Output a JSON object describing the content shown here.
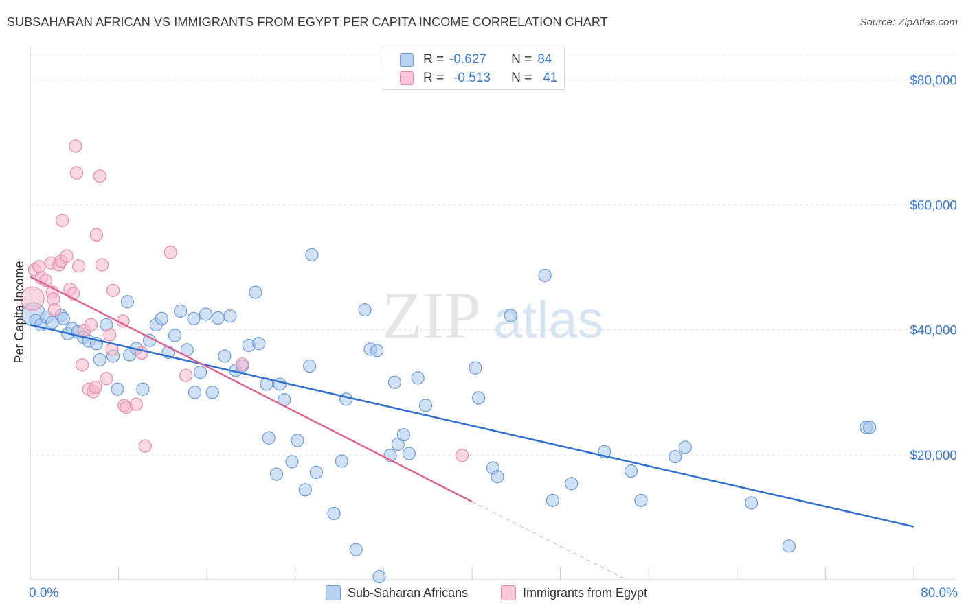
{
  "title": "SUBSAHARAN AFRICAN VS IMMIGRANTS FROM EGYPT PER CAPITA INCOME CORRELATION CHART",
  "source": "Source: ZipAtlas.com",
  "watermark": {
    "part1": "ZIP",
    "part2": "atlas"
  },
  "legend": {
    "rows": [
      {
        "r_label": "R =",
        "r_value": "-0.627",
        "n_label": "N =",
        "n_value": "84"
      },
      {
        "r_label": "R =",
        "r_value": "-0.513",
        "n_label": "N =",
        "n_value": "41"
      }
    ]
  },
  "bottom_legend": {
    "series1": "Sub-Saharan Africans",
    "series2": "Immigrants from Egypt"
  },
  "colors": {
    "blue_fill": "#a9c8ee",
    "blue_stroke": "#6a9ad8",
    "blue_line": "#2f6fd0",
    "pink_fill": "#f6b8cb",
    "pink_stroke": "#e88aa8",
    "pink_line": "#e0608e",
    "axis_text": "#3a78d8",
    "grid": "#e4e4e4"
  },
  "chart_data": {
    "type": "scatter",
    "xlabel": "",
    "ylabel": "Per Capita Income",
    "x_unit": "%",
    "xlim": [
      0,
      80
    ],
    "ylim": [
      0,
      84000
    ],
    "x_tick_labels": [
      "0.0%",
      "80.0%"
    ],
    "y_ticks": [
      20000,
      40000,
      60000,
      80000
    ],
    "y_tick_labels": [
      "$20,000",
      "$40,000",
      "$60,000",
      "$80,000"
    ],
    "grid": true,
    "series": [
      {
        "name": "Sub-Saharan Africans",
        "color": "#6a9ad8",
        "r": -0.627,
        "n": 84,
        "trend": {
          "x": [
            0,
            80
          ],
          "y": [
            40800,
            8500
          ]
        },
        "points": [
          [
            0.3,
            42500
          ],
          [
            0.5,
            41500
          ],
          [
            1.0,
            40800
          ],
          [
            1.5,
            42000
          ],
          [
            2.0,
            41200
          ],
          [
            2.8,
            42300
          ],
          [
            3.0,
            41800
          ],
          [
            3.4,
            39400
          ],
          [
            3.8,
            40200
          ],
          [
            4.3,
            39700
          ],
          [
            4.8,
            38800
          ],
          [
            5.3,
            38200
          ],
          [
            6.0,
            37800
          ],
          [
            6.3,
            35200
          ],
          [
            6.9,
            40800
          ],
          [
            7.5,
            35800
          ],
          [
            7.9,
            30500
          ],
          [
            8.8,
            44500
          ],
          [
            9.0,
            36000
          ],
          [
            9.6,
            37000
          ],
          [
            10.2,
            30500
          ],
          [
            10.8,
            38300
          ],
          [
            11.4,
            40800
          ],
          [
            11.9,
            41800
          ],
          [
            12.5,
            36400
          ],
          [
            13.1,
            39100
          ],
          [
            13.6,
            43000
          ],
          [
            14.2,
            36800
          ],
          [
            14.8,
            41800
          ],
          [
            14.9,
            30000
          ],
          [
            15.4,
            33200
          ],
          [
            15.9,
            42500
          ],
          [
            16.5,
            30000
          ],
          [
            17.0,
            41900
          ],
          [
            17.6,
            35800
          ],
          [
            18.1,
            42200
          ],
          [
            18.6,
            33500
          ],
          [
            19.2,
            34200
          ],
          [
            19.8,
            37500
          ],
          [
            20.4,
            46000
          ],
          [
            20.7,
            37800
          ],
          [
            21.4,
            31300
          ],
          [
            21.6,
            22700
          ],
          [
            22.3,
            16900
          ],
          [
            22.6,
            31300
          ],
          [
            23.0,
            28800
          ],
          [
            23.7,
            18900
          ],
          [
            24.2,
            22300
          ],
          [
            24.9,
            14400
          ],
          [
            25.3,
            34200
          ],
          [
            25.9,
            17200
          ],
          [
            25.5,
            52000
          ],
          [
            27.5,
            10600
          ],
          [
            28.2,
            19000
          ],
          [
            28.6,
            28900
          ],
          [
            29.5,
            4800
          ],
          [
            30.3,
            43200
          ],
          [
            30.8,
            36900
          ],
          [
            31.4,
            36700
          ],
          [
            31.6,
            500
          ],
          [
            32.6,
            19900
          ],
          [
            33.0,
            31600
          ],
          [
            33.3,
            21700
          ],
          [
            33.8,
            23200
          ],
          [
            34.3,
            20200
          ],
          [
            35.1,
            32300
          ],
          [
            35.8,
            27900
          ],
          [
            40.3,
            33900
          ],
          [
            40.6,
            29100
          ],
          [
            41.9,
            17900
          ],
          [
            42.3,
            16500
          ],
          [
            43.5,
            42300
          ],
          [
            46.6,
            48700
          ],
          [
            47.3,
            12700
          ],
          [
            49.0,
            15400
          ],
          [
            52.0,
            20500
          ],
          [
            54.4,
            17400
          ],
          [
            55.3,
            12700
          ],
          [
            58.4,
            19700
          ],
          [
            59.3,
            21200
          ],
          [
            65.3,
            12300
          ],
          [
            68.7,
            5400
          ],
          [
            75.7,
            24400
          ],
          [
            76.0,
            24400
          ]
        ]
      },
      {
        "name": "Immigrants from Egypt",
        "color": "#e88aa8",
        "r": -0.513,
        "n": 41,
        "trend": {
          "x": [
            0,
            40
          ],
          "y": [
            48500,
            12500
          ]
        },
        "trend_dashed": {
          "x": [
            40,
            54
          ],
          "y": [
            12500,
            0
          ]
        },
        "points": [
          [
            0.2,
            45000
          ],
          [
            0.4,
            49600
          ],
          [
            0.8,
            50100
          ],
          [
            1.0,
            48300
          ],
          [
            1.4,
            47900
          ],
          [
            1.9,
            50700
          ],
          [
            2.0,
            46000
          ],
          [
            2.1,
            44900
          ],
          [
            2.2,
            43200
          ],
          [
            2.6,
            50400
          ],
          [
            2.8,
            51000
          ],
          [
            2.9,
            57500
          ],
          [
            3.3,
            51800
          ],
          [
            3.6,
            46500
          ],
          [
            3.9,
            45800
          ],
          [
            4.1,
            69400
          ],
          [
            4.2,
            65100
          ],
          [
            4.4,
            50200
          ],
          [
            4.7,
            34400
          ],
          [
            4.9,
            39900
          ],
          [
            5.3,
            30500
          ],
          [
            5.5,
            40800
          ],
          [
            5.7,
            30100
          ],
          [
            5.9,
            30800
          ],
          [
            6.0,
            55200
          ],
          [
            6.3,
            64600
          ],
          [
            6.5,
            50400
          ],
          [
            6.9,
            32200
          ],
          [
            7.2,
            39200
          ],
          [
            7.4,
            36900
          ],
          [
            7.5,
            46300
          ],
          [
            8.4,
            41400
          ],
          [
            8.5,
            27900
          ],
          [
            8.7,
            27600
          ],
          [
            9.6,
            28100
          ],
          [
            10.1,
            36300
          ],
          [
            10.4,
            21400
          ],
          [
            12.7,
            52400
          ],
          [
            14.1,
            32700
          ],
          [
            19.2,
            34500
          ],
          [
            39.1,
            19900
          ]
        ]
      }
    ]
  }
}
